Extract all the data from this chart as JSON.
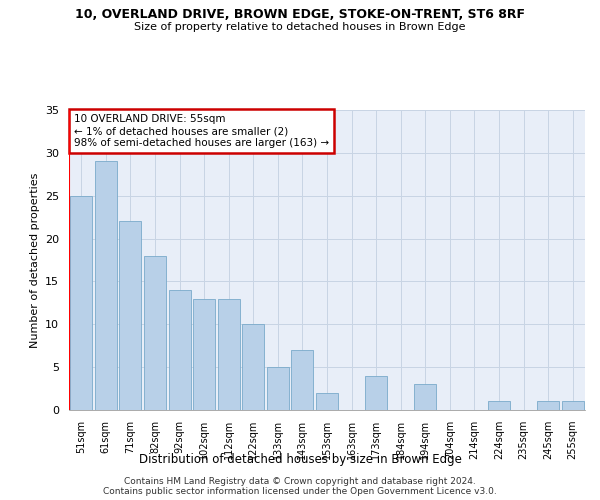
{
  "title": "10, OVERLAND DRIVE, BROWN EDGE, STOKE-ON-TRENT, ST6 8RF",
  "subtitle": "Size of property relative to detached houses in Brown Edge",
  "xlabel": "Distribution of detached houses by size in Brown Edge",
  "ylabel": "Number of detached properties",
  "categories": [
    "51sqm",
    "61sqm",
    "71sqm",
    "82sqm",
    "92sqm",
    "102sqm",
    "112sqm",
    "122sqm",
    "133sqm",
    "143sqm",
    "153sqm",
    "163sqm",
    "173sqm",
    "184sqm",
    "194sqm",
    "204sqm",
    "214sqm",
    "224sqm",
    "235sqm",
    "245sqm",
    "255sqm"
  ],
  "values": [
    25,
    29,
    22,
    18,
    14,
    13,
    13,
    10,
    5,
    7,
    2,
    0,
    4,
    0,
    3,
    0,
    0,
    1,
    0,
    1,
    1
  ],
  "bar_color": "#b8d0e8",
  "bar_edge_color": "#7aaaca",
  "annotation_text": "10 OVERLAND DRIVE: 55sqm\n← 1% of detached houses are smaller (2)\n98% of semi-detached houses are larger (163) →",
  "annotation_box_color": "#ffffff",
  "annotation_box_edge_color": "#cc0000",
  "ylim": [
    0,
    35
  ],
  "yticks": [
    0,
    5,
    10,
    15,
    20,
    25,
    30,
    35
  ],
  "grid_color": "#c8d4e4",
  "background_color": "#e8eef8",
  "footer1": "Contains HM Land Registry data © Crown copyright and database right 2024.",
  "footer2": "Contains public sector information licensed under the Open Government Licence v3.0."
}
